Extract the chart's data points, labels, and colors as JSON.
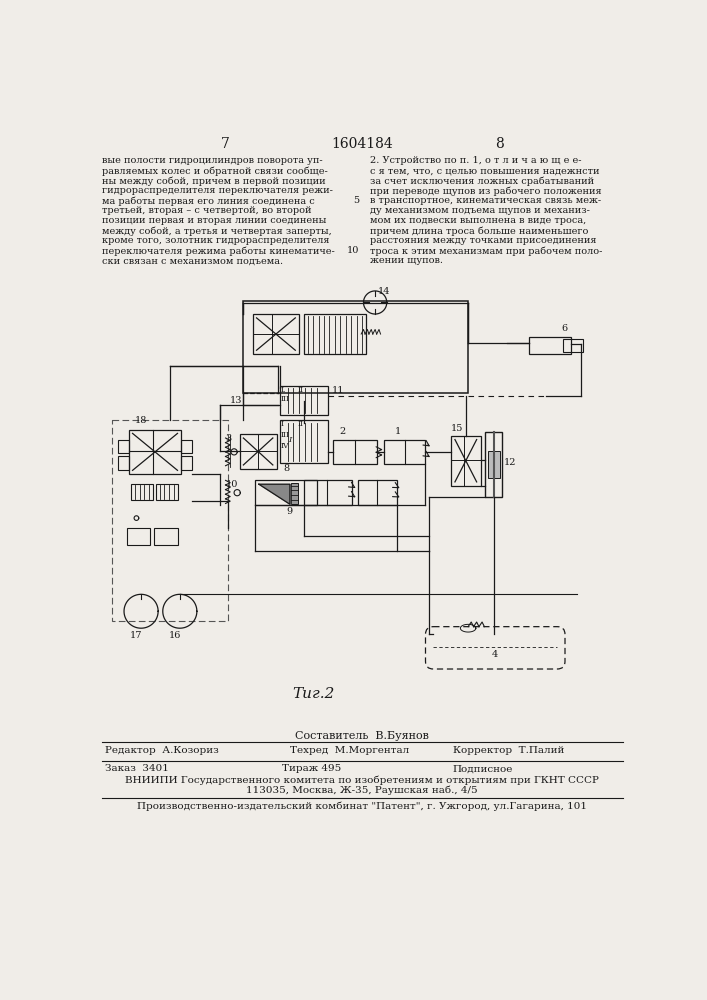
{
  "page_color": "#f0ede8",
  "header_page_left": "7",
  "header_title": "1604184",
  "header_page_right": "8",
  "left_text": [
    "вые полости гидроцилиндров поворота уп-",
    "равляемых колес и обратной связи сообще-",
    "ны между собой, причем в первой позиции",
    "гидрораспределителя переключателя режи-",
    "ма работы первая его линия соединена с",
    "третьей, вторая – с четвертой, во второй",
    "позиции первая и вторая линии соединены",
    "между собой, а третья и четвертая заперты,",
    "кроме того, золотник гидрораспределителя",
    "переключателя режима работы кинематиче-",
    "ски связан с механизмом подъема."
  ],
  "right_text": [
    "2. Устройство по п. 1, о т л и ч а ю щ е е-",
    "с я тем, что, с целью повышения надежнсти",
    "за счет исключения ложных срабатываний",
    "при переводе щупов из рабочего положения",
    "в транспортное, кинематическая связь меж-",
    "ду механизмом подъема щупов и механиз-",
    "мом их подвески выполнена в виде троса,",
    "причем длина троса больше наименьшего",
    "расстояния между точками присоединения",
    "троса к этим механизмам при рабочем поло-",
    "жении щупов."
  ],
  "line_num_5_row": 4,
  "line_num_10_row": 9,
  "caption": "Τиг.2",
  "composer_label": "Составитель",
  "composer_name": "В.Буянов",
  "editor_label": "Редактор",
  "editor_name": "А.Козориз",
  "techred_label": "Техред",
  "techred_name": "М.Моргентал",
  "corrector_label": "Корректор",
  "corrector_name": "Т.Палий",
  "order_label": "Заказ",
  "order_num": "3401",
  "tirazh_label": "Тираж",
  "tirazh_num": "495",
  "podpisnoe": "Подписное",
  "vniiipi_line": "ВНИИПИ Государственного комитета по изобретениям и открытиям при ГКНТ СССР",
  "address_line": "113035, Москва, Ж-35, Раушская наб., 4/5",
  "publisher_line": "Производственно-издательский комбинат \"Патент\", г. Ужгород, ул.Гагарина, 101"
}
